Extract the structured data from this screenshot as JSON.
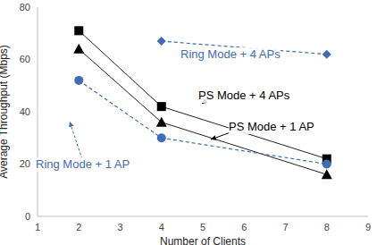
{
  "chart_data": {
    "type": "line",
    "x_label": "Number of Clients",
    "y_label": "Average Throughput (Mbps)",
    "x": [
      2,
      4,
      8
    ],
    "xlim": [
      1,
      9
    ],
    "xticks": [
      1,
      2,
      3,
      4,
      5,
      6,
      7,
      8,
      9
    ],
    "ylim": [
      0,
      80
    ],
    "yticks": [
      0,
      20,
      40,
      60,
      80
    ],
    "grid": false,
    "series": [
      {
        "name": "Ring Mode + 4 APs",
        "color": "#3f6cb5",
        "marker": "diamond",
        "line_style": "dashed",
        "values": [
          null,
          67,
          62
        ]
      },
      {
        "name": "PS Mode + 4 APs",
        "color": "#000000",
        "marker": "square",
        "line_style": "solid",
        "values": [
          71,
          42,
          22
        ]
      },
      {
        "name": "PS Mode + 1 AP",
        "color": "#000000",
        "marker": "triangle",
        "line_style": "solid",
        "values": [
          64,
          36,
          16
        ]
      },
      {
        "name": "Ring Mode + 1 AP",
        "color": "#3f6cb5",
        "marker": "circle",
        "line_style": "dashed",
        "values": [
          52,
          30,
          20
        ]
      }
    ]
  }
}
